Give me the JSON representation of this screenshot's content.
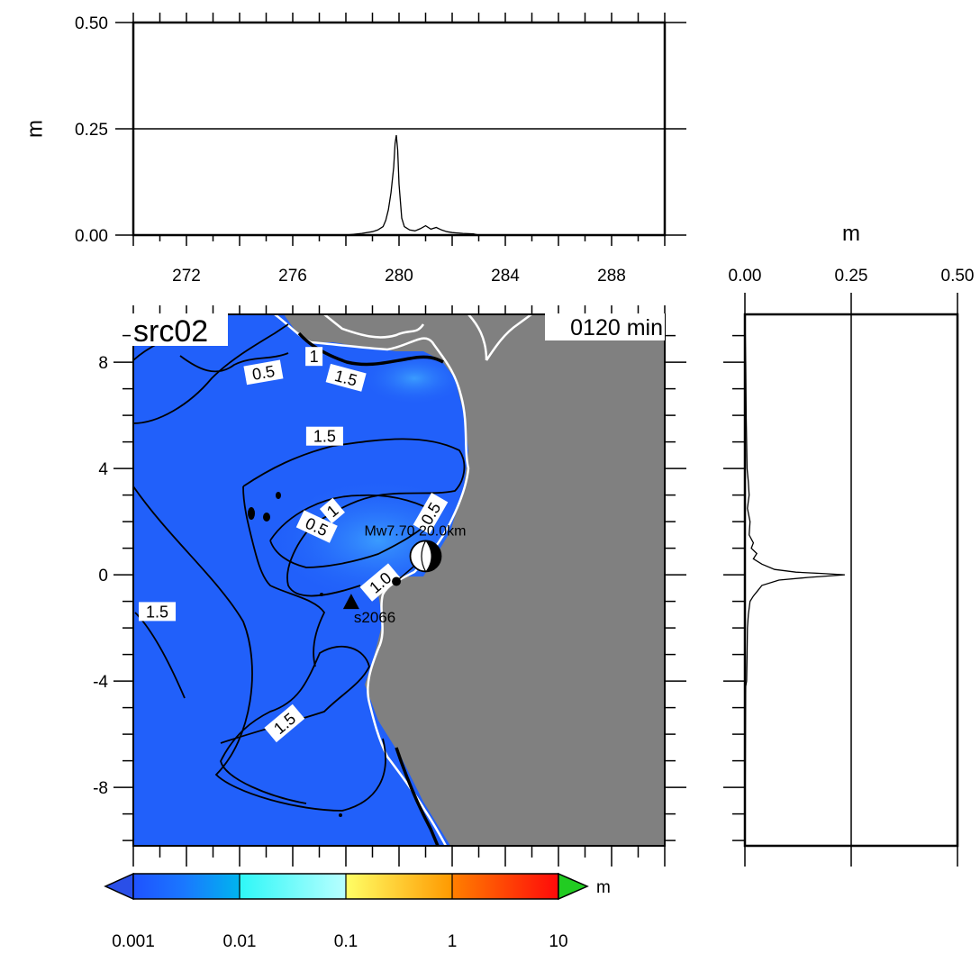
{
  "chart_data": [
    {
      "type": "line",
      "panel": "top-profile",
      "ylabel": "m",
      "xlim": [
        270,
        290
      ],
      "ylim": [
        0,
        0.5
      ],
      "x_ticks": [
        272,
        276,
        280,
        284,
        288
      ],
      "y_ticks": [
        "0.00",
        "0.25",
        "0.50"
      ],
      "gridline_y": 0.25,
      "series": [
        {
          "x": [
            270.0,
            278.0,
            278.6,
            279.0,
            279.2,
            279.4,
            279.5,
            279.6,
            279.7,
            279.8,
            279.85,
            279.9,
            279.95,
            280.0,
            280.1,
            280.2,
            280.4,
            280.6,
            280.8,
            281.0,
            281.2,
            281.4,
            281.6,
            281.8,
            282.0,
            282.4,
            282.8,
            283.0,
            290.0
          ],
          "y": [
            0.0,
            0.0,
            0.004,
            0.008,
            0.012,
            0.02,
            0.035,
            0.06,
            0.1,
            0.16,
            0.215,
            0.235,
            0.2,
            0.12,
            0.04,
            0.02,
            0.012,
            0.01,
            0.015,
            0.022,
            0.014,
            0.018,
            0.012,
            0.008,
            0.006,
            0.004,
            0.003,
            0.0,
            0.0
          ]
        }
      ]
    },
    {
      "type": "line",
      "panel": "right-profile",
      "xlabel": "m",
      "xlim": [
        0,
        0.5
      ],
      "ylim": [
        -10.2,
        9.8
      ],
      "x_ticks": [
        "0.00",
        "0.25",
        "0.50"
      ],
      "gridline_x": 0.25,
      "series": [
        {
          "y": [
            9.8,
            8.0,
            6.0,
            4.0,
            3.5,
            3.0,
            2.5,
            2.0,
            1.5,
            1.2,
            1.0,
            0.8,
            0.6,
            0.4,
            0.2,
            0.1,
            0.05,
            0.0,
            -0.1,
            -0.2,
            -0.4,
            -0.6,
            -0.8,
            -1.0,
            -1.5,
            -2.0,
            -3.0,
            -4.0,
            -4.2,
            -10.2
          ],
          "x": [
            0.0,
            0.002,
            0.003,
            0.005,
            0.008,
            0.01,
            0.006,
            0.012,
            0.01,
            0.02,
            0.015,
            0.028,
            0.02,
            0.04,
            0.07,
            0.12,
            0.18,
            0.235,
            0.15,
            0.08,
            0.04,
            0.03,
            0.02,
            0.012,
            0.008,
            0.006,
            0.005,
            0.004,
            0.002,
            0.0
          ]
        }
      ]
    },
    {
      "type": "heatmap",
      "panel": "main-map",
      "title": "src02",
      "time_label": "0120 min",
      "xlim": [
        270,
        290
      ],
      "ylim": [
        -10.2,
        9.8
      ],
      "y_ticks": [
        8,
        4,
        0,
        -4,
        -8
      ],
      "contour_labels": [
        {
          "text": "0.5",
          "x": 274.9,
          "y": 7.6,
          "angle": -10
        },
        {
          "text": "1",
          "x": 276.8,
          "y": 8.2,
          "angle": 0
        },
        {
          "text": "1.5",
          "x": 278.0,
          "y": 7.4,
          "angle": 15
        },
        {
          "text": "1.5",
          "x": 277.2,
          "y": 5.2,
          "angle": 0
        },
        {
          "text": "0.5",
          "x": 276.9,
          "y": 1.8,
          "angle": 25
        },
        {
          "text": "1",
          "x": 277.5,
          "y": 2.4,
          "angle": -40
        },
        {
          "text": "0.5",
          "x": 281.2,
          "y": 2.3,
          "angle": -60
        },
        {
          "text": "1.0",
          "x": 279.3,
          "y": -0.3,
          "angle": -40
        },
        {
          "text": "1.5",
          "x": 270.9,
          "y": -1.4,
          "angle": 0
        },
        {
          "text": "1.5",
          "x": 275.7,
          "y": -5.6,
          "angle": -40
        }
      ],
      "source": {
        "label": "Mw7.70  20.0km",
        "x": 281.0,
        "y": 0.7
      },
      "epicenter": {
        "x": 279.9,
        "y": -0.25
      },
      "station": {
        "label": "s2066",
        "x": 278.2,
        "y": -1.05
      },
      "colorbar": {
        "unit": "m",
        "scale": "log",
        "ticks": [
          "0.001",
          "0.01",
          "0.1",
          "1",
          "10"
        ]
      }
    }
  ],
  "colors": {
    "sea": "#2160fa",
    "land": "#808080",
    "coast": "#ffffff",
    "contour": "#000000"
  }
}
